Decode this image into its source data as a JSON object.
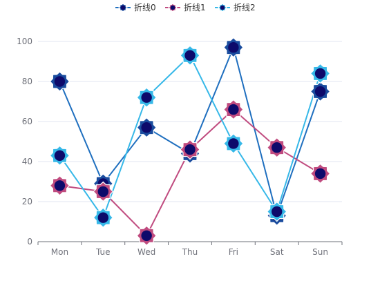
{
  "chart_data": {
    "type": "line",
    "title": "",
    "xlabel": "",
    "ylabel": "",
    "categories": [
      "Mon",
      "Tue",
      "Wed",
      "Thu",
      "Fri",
      "Sat",
      "Sun"
    ],
    "ylim": [
      0,
      100
    ],
    "yticks": [
      "0",
      "20",
      "40",
      "60",
      "80",
      "100"
    ],
    "grid": true,
    "legend_position": "top-center",
    "series": [
      {
        "name": "折线0",
        "values": [
          80,
          29,
          57,
          44,
          97,
          13,
          75
        ],
        "color": "#1f6fbf",
        "marker_color": "#1a4c9e"
      },
      {
        "name": "折线1",
        "values": [
          28,
          25,
          3,
          46,
          66,
          47,
          34
        ],
        "color": "#c04b7f",
        "marker_color": "#c04b7f"
      },
      {
        "name": "折线2",
        "values": [
          43,
          12,
          72,
          93,
          49,
          15,
          84
        ],
        "color": "#36b8e8",
        "marker_color": "#36b8e8"
      }
    ],
    "marker_center_color": "#0d0a6b"
  }
}
